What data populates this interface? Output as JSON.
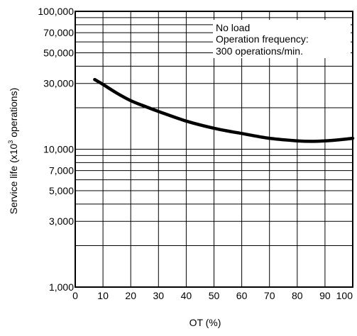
{
  "chart_data": {
    "type": "line",
    "title": "",
    "xlabel": "OT (%)",
    "ylabel_main": "Service life (x10",
    "ylabel_sup": "3",
    "ylabel_tail": " operations)",
    "xscale": "linear",
    "yscale": "log",
    "xlim": [
      0,
      100
    ],
    "ylim": [
      1000,
      100000
    ],
    "x_ticks": [
      0,
      10,
      20,
      30,
      40,
      50,
      60,
      70,
      80,
      90,
      100
    ],
    "x_tick_labels": [
      "0",
      "10",
      "20",
      "30",
      "40",
      "50",
      "60",
      "70",
      "80",
      "90",
      "100"
    ],
    "y_gridlines": [
      1000,
      2000,
      3000,
      4000,
      5000,
      6000,
      7000,
      8000,
      9000,
      10000,
      20000,
      30000,
      40000,
      50000,
      60000,
      70000,
      80000,
      90000,
      100000
    ],
    "y_tick_values": [
      1000,
      3000,
      5000,
      7000,
      10000,
      30000,
      50000,
      70000,
      100000
    ],
    "y_tick_labels": [
      "1,000",
      "3,000",
      "5,000",
      "7,000",
      "10,000",
      "30,000",
      "50,000",
      "70,000",
      "100,000"
    ],
    "grid": true,
    "legend": "none",
    "annotations": [
      "No load",
      "Operation frequency:",
      "300 operations/min."
    ],
    "line_color": "#000000",
    "series": [
      {
        "x": [
          7,
          10,
          15,
          20,
          25,
          30,
          40,
          50,
          60,
          70,
          80,
          85,
          90,
          95,
          100
        ],
        "y": [
          32000,
          29500,
          25500,
          22500,
          20500,
          18800,
          16000,
          14200,
          13000,
          12000,
          11500,
          11400,
          11500,
          11700,
          12000
        ]
      }
    ]
  }
}
